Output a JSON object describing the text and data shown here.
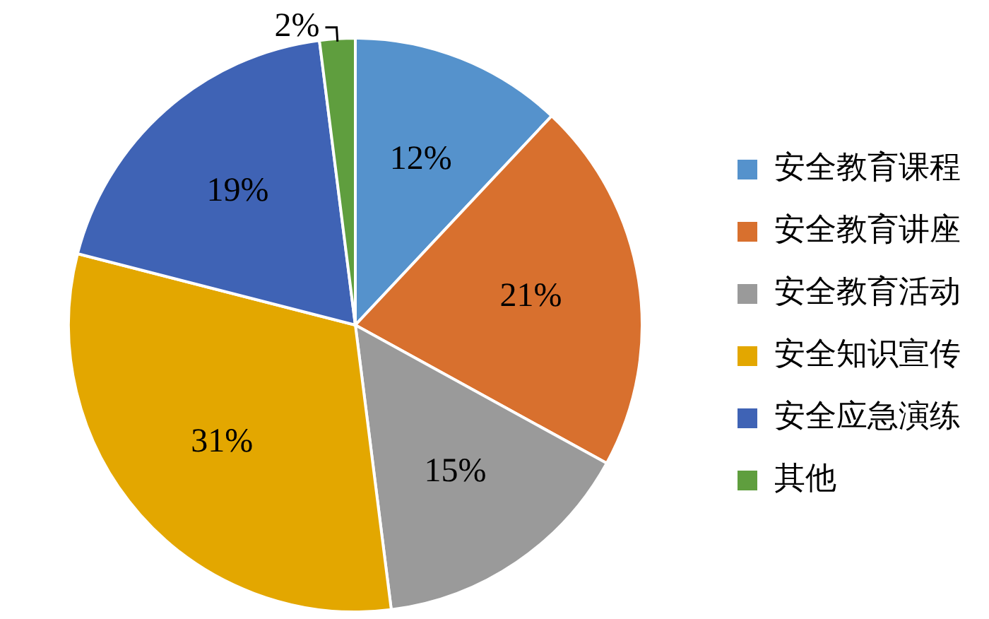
{
  "chart_data": {
    "type": "pie",
    "categories": [
      "安全教育课程",
      "安全教育讲座",
      "安全教育活动",
      "安全知识宣传",
      "安全应急演练",
      "其他"
    ],
    "values": [
      12,
      21,
      15,
      31,
      19,
      2
    ],
    "colors": [
      "#5592cc",
      "#d8702e",
      "#9a9a9a",
      "#e3a700",
      "#3f63b5",
      "#5f9e3e"
    ],
    "value_labels": [
      "12%",
      "21%",
      "15%",
      "31%",
      "19%",
      "2%"
    ],
    "legend": "right"
  }
}
